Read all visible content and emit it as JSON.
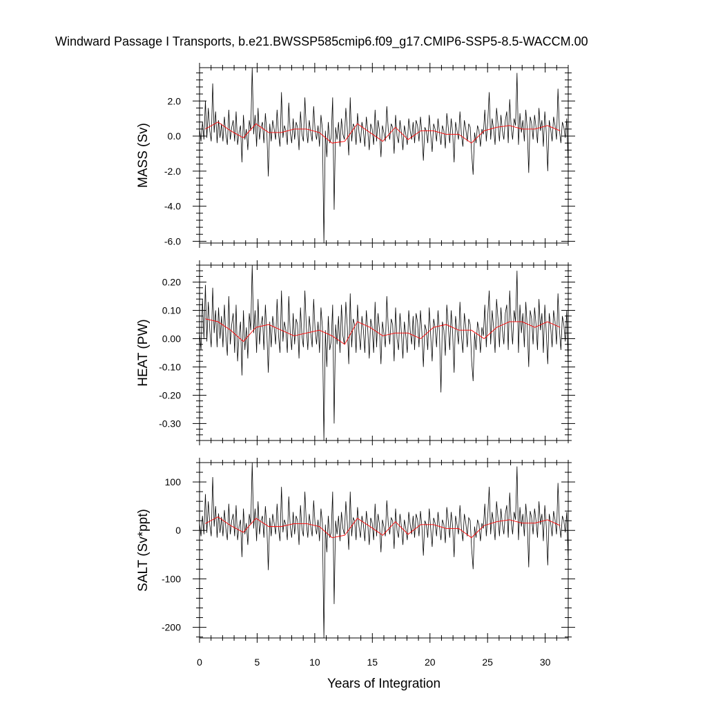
{
  "chart_data": {
    "type": "line",
    "title": "Windward Passage I Transports, b.e21.BWSSP585cmip6.f09_g17.CMIP6-SSP5-8.5-WACCM.00",
    "xlabel": "Years of Integration",
    "xlim": [
      0,
      32
    ],
    "x_ticks": [
      0,
      5,
      10,
      15,
      20,
      25,
      30
    ],
    "x_tick_labels": [
      "0",
      "5",
      "10",
      "15",
      "20",
      "25",
      "30"
    ],
    "series_colors": {
      "monthly": "#000000",
      "annual_mean": "#ff0000"
    },
    "panels": [
      {
        "ylabel": "MASS (Sv)",
        "ylim": [
          -6.1,
          3.9
        ],
        "y_ticks": [
          2.0,
          0.0,
          -2.0,
          -4.0,
          -6.0
        ],
        "y_tick_labels": [
          "2.0",
          "0.0",
          "-2.0",
          "-4.0",
          "-6.0"
        ],
        "series": [
          {
            "values": [
              0.4,
              -0.3,
              0.8,
              -0.2,
              2.0,
              -0.1,
              1.6,
              0.3,
              -0.3,
              3.0,
              0.2,
              1.4,
              -0.4,
              0.9,
              -0.1,
              0.7,
              -0.3,
              1.1,
              0.1,
              -0.5,
              1.5,
              -0.2,
              0.5,
              0.9,
              -0.3,
              1.4,
              -0.5,
              0.2,
              0.6,
              -1.5,
              1.2,
              -0.2,
              0.4,
              -0.8,
              0.9,
              0.3,
              3.9,
              0.1,
              1.2,
              -0.6,
              1.6,
              -0.2,
              0.5,
              0.8,
              -0.4,
              1.3,
              0.2,
              -2.3,
              0.7,
              -0.3,
              0.9,
              0.4,
              -0.2,
              1.5,
              0.1,
              -0.6,
              2.5,
              -0.1,
              0.6,
              0.3,
              -0.5,
              1.9,
              0.2,
              -0.4,
              1.0,
              -0.2,
              0.8,
              0.5,
              -0.8,
              1.4,
              0.1,
              -0.3,
              2.2,
              0.4,
              -0.4,
              0.9,
              0.2,
              -0.3,
              1.7,
              0.3,
              -0.2,
              0.6,
              -0.6,
              1.2,
              0.4,
              -6.1,
              0.3,
              -1.2,
              0.8,
              -0.4,
              -0.1,
              2.2,
              -4.2,
              0.5,
              -0.2,
              0.8,
              -0.6,
              1.0,
              0.1,
              -0.2,
              1.6,
              0.4,
              -1.1,
              2.2,
              -0.3,
              0.7,
              0.5,
              -0.5,
              1.3,
              0.2,
              -0.4,
              0.8,
              0.3,
              -0.6,
              1.1,
              0.3,
              -0.8,
              0.7,
              0.4,
              -0.5,
              1.5,
              -0.3,
              0.9,
              0.3,
              -1.2,
              0.6,
              0.2,
              -0.3,
              1.7,
              0.4,
              -0.2,
              0.7,
              0.5,
              -1.0,
              1.2,
              0.0,
              -0.4,
              0.9,
              0.2,
              -0.8,
              0.6,
              0.1,
              -0.5,
              1.0,
              0.3,
              -0.2,
              0.8,
              -0.4,
              0.9,
              0.6,
              -0.3,
              1.1,
              0.2,
              -1.4,
              0.5,
              0.3,
              -0.4,
              1.2,
              0.1,
              -0.9,
              0.7,
              0.4,
              -0.3,
              1.0,
              0.2,
              -0.5,
              0.6,
              0.3,
              -0.7,
              1.3,
              0.5,
              -0.4,
              1.0,
              0.2,
              -1.5,
              0.8,
              0.3,
              -0.2,
              1.4,
              0.1,
              -0.6,
              0.9,
              0.4,
              -0.3,
              0.7,
              0.5,
              -1.0,
              -2.2,
              0.2,
              -0.4,
              0.6,
              0.3,
              -0.6,
              0.4,
              0.1,
              1.5,
              -0.3,
              0.8,
              2.5,
              -0.2,
              1.0,
              0.4,
              -0.5,
              1.6,
              0.7,
              -0.3,
              1.2,
              0.3,
              -0.2,
              0.9,
              1.4,
              -0.4,
              2.1,
              0.5,
              -0.2,
              1.0,
              0.6,
              3.6,
              -0.5,
              1.3,
              0.2,
              0.9,
              -0.3,
              1.5,
              0.4,
              -2.1,
              1.1,
              0.7,
              -0.2,
              1.2,
              0.5,
              -0.4,
              1.6,
              0.3,
              0.9,
              -0.6,
              1.4,
              0.2,
              -2.0,
              0.9,
              0.4,
              -0.3,
              1.1,
              0.6,
              -0.2,
              2.7,
              0.3,
              -0.4,
              0.8,
              0.5,
              -0.1,
              1.0,
              -1.7
            ]
          },
          {
            "values": [
              0.4,
              0.8,
              0.3,
              -0.1,
              0.7,
              0.2,
              0.2,
              0.4,
              0.4,
              0.2,
              -0.4,
              -0.3,
              0.7,
              0.2,
              -0.3,
              0.5,
              -0.2,
              0.3,
              0.3,
              0.1,
              0.1,
              -0.4,
              0.3,
              0.5,
              0.6,
              0.4,
              0.4,
              0.6,
              0.3
            ]
          }
        ]
      },
      {
        "ylabel": "HEAT (PW)",
        "ylim": [
          -0.36,
          0.26
        ],
        "y_ticks": [
          0.2,
          0.1,
          0.0,
          -0.1,
          -0.2,
          -0.3
        ],
        "y_tick_labels": [
          "0.20",
          "0.10",
          "0.00",
          "-0.10",
          "-0.20",
          "-0.30"
        ],
        "series": [
          {
            "values": [
              0.02,
              -0.04,
              0.14,
              0.0,
              0.19,
              -0.01,
              0.13,
              0.03,
              -0.03,
              0.18,
              0.02,
              0.1,
              -0.03,
              0.11,
              0.0,
              0.08,
              -0.03,
              0.12,
              0.01,
              -0.06,
              0.15,
              -0.02,
              0.05,
              0.09,
              -0.05,
              0.12,
              -0.08,
              0.01,
              0.06,
              -0.13,
              0.1,
              -0.04,
              0.04,
              -0.07,
              0.09,
              0.03,
              0.26,
              0.02,
              0.1,
              -0.05,
              0.14,
              -0.02,
              0.05,
              0.08,
              -0.04,
              0.12,
              0.02,
              -0.12,
              0.06,
              -0.03,
              0.08,
              0.04,
              -0.02,
              0.14,
              0.01,
              -0.05,
              0.17,
              -0.01,
              0.06,
              0.03,
              -0.05,
              0.15,
              0.02,
              -0.04,
              0.09,
              -0.02,
              0.07,
              0.05,
              -0.07,
              0.11,
              0.01,
              -0.03,
              0.17,
              0.04,
              -0.04,
              0.08,
              0.02,
              -0.03,
              0.14,
              0.03,
              -0.02,
              0.06,
              -0.05,
              0.11,
              0.04,
              -0.36,
              0.03,
              -0.1,
              0.08,
              -0.04,
              -0.01,
              0.12,
              -0.3,
              0.05,
              -0.02,
              0.08,
              -0.05,
              0.12,
              0.01,
              -0.02,
              0.13,
              0.04,
              -0.09,
              0.16,
              -0.03,
              0.07,
              0.05,
              -0.05,
              0.12,
              0.02,
              -0.04,
              0.08,
              0.03,
              -0.05,
              0.1,
              0.03,
              -0.07,
              0.07,
              0.04,
              -0.05,
              0.13,
              -0.03,
              0.09,
              0.03,
              -0.09,
              0.06,
              0.02,
              -0.03,
              0.15,
              0.04,
              -0.02,
              0.07,
              0.05,
              -0.08,
              0.11,
              0.0,
              -0.04,
              0.09,
              0.02,
              -0.07,
              0.06,
              0.01,
              -0.05,
              0.1,
              0.03,
              -0.02,
              0.08,
              -0.04,
              0.09,
              0.06,
              -0.03,
              0.1,
              0.02,
              -0.1,
              0.05,
              0.03,
              -0.04,
              0.11,
              0.01,
              -0.08,
              0.07,
              0.04,
              -0.03,
              0.1,
              0.02,
              -0.19,
              0.06,
              0.03,
              -0.06,
              0.12,
              0.05,
              -0.04,
              0.1,
              0.02,
              -0.12,
              0.08,
              0.03,
              -0.02,
              0.13,
              0.01,
              -0.05,
              0.09,
              0.04,
              -0.03,
              0.07,
              0.05,
              -0.08,
              -0.15,
              0.02,
              -0.04,
              0.06,
              0.03,
              -0.05,
              0.04,
              0.01,
              0.12,
              -0.03,
              0.08,
              0.17,
              -0.02,
              0.1,
              0.04,
              -0.05,
              0.14,
              0.07,
              -0.03,
              0.11,
              0.03,
              -0.02,
              0.09,
              0.12,
              -0.04,
              0.17,
              0.05,
              -0.02,
              0.1,
              0.06,
              0.24,
              -0.05,
              0.12,
              0.02,
              0.09,
              -0.03,
              0.13,
              0.04,
              -0.1,
              0.1,
              0.07,
              -0.02,
              0.11,
              0.05,
              -0.04,
              0.14,
              0.03,
              0.09,
              -0.05,
              0.12,
              0.02,
              -0.09,
              0.09,
              0.04,
              -0.03,
              0.1,
              0.06,
              -0.02,
              0.16,
              0.03,
              -0.04,
              0.08,
              0.05,
              -0.01,
              0.1,
              -0.1
            ]
          },
          {
            "values": [
              0.07,
              0.06,
              0.03,
              -0.01,
              0.04,
              0.05,
              0.03,
              0.01,
              0.02,
              0.03,
              0.01,
              -0.02,
              0.06,
              0.04,
              0.01,
              0.02,
              0.02,
              0.0,
              0.04,
              0.05,
              0.03,
              0.03,
              0.0,
              0.04,
              0.06,
              0.06,
              0.04,
              0.06,
              0.04
            ]
          }
        ]
      },
      {
        "ylabel": "SALT (Sv*ppt)",
        "ylim": [
          -222,
          140
        ],
        "y_ticks": [
          100,
          0,
          -100,
          -200
        ],
        "y_tick_labels": [
          "100",
          "0",
          "-100",
          "-200"
        ],
        "series": [
          {
            "values": [
              15,
              -12,
              30,
              -8,
              75,
              -5,
              60,
              12,
              -12,
              110,
              8,
              50,
              -15,
              35,
              -5,
              28,
              -12,
              42,
              4,
              -20,
              55,
              -8,
              20,
              34,
              -12,
              52,
              -20,
              8,
              22,
              -55,
              45,
              -8,
              15,
              -30,
              34,
              12,
              140,
              4,
              45,
              -22,
              60,
              -8,
              20,
              30,
              -15,
              50,
              8,
              -82,
              26,
              -12,
              34,
              15,
              -8,
              55,
              4,
              -22,
              90,
              -4,
              22,
              12,
              -20,
              70,
              8,
              -15,
              38,
              -8,
              30,
              20,
              -30,
              52,
              4,
              -12,
              80,
              15,
              -15,
              34,
              8,
              -12,
              62,
              12,
              -8,
              22,
              -22,
              45,
              15,
              -222,
              12,
              -45,
              30,
              -15,
              -4,
              80,
              -152,
              20,
              -8,
              30,
              -22,
              38,
              4,
              -8,
              60,
              15,
              -40,
              80,
              -12,
              26,
              20,
              -20,
              48,
              8,
              -15,
              30,
              12,
              -22,
              40,
              12,
              -30,
              26,
              15,
              -20,
              55,
              -12,
              34,
              12,
              -45,
              22,
              8,
              -12,
              62,
              15,
              -8,
              26,
              20,
              -38,
              45,
              0,
              -15,
              34,
              8,
              -30,
              22,
              4,
              -20,
              38,
              12,
              -8,
              30,
              -15,
              34,
              22,
              -12,
              40,
              8,
              -52,
              20,
              12,
              -15,
              45,
              4,
              -34,
              26,
              15,
              -12,
              38,
              8,
              -20,
              22,
              12,
              -26,
              48,
              20,
              -15,
              38,
              8,
              -55,
              30,
              12,
              -8,
              52,
              4,
              -22,
              34,
              15,
              -12,
              26,
              20,
              -38,
              -80,
              8,
              -15,
              22,
              12,
              -22,
              15,
              4,
              55,
              -12,
              30,
              90,
              -8,
              38,
              15,
              -20,
              60,
              26,
              -12,
              45,
              12,
              -8,
              34,
              52,
              -15,
              78,
              20,
              -8,
              38,
              22,
              132,
              -20,
              48,
              8,
              34,
              -12,
              55,
              15,
              -76,
              40,
              26,
              -8,
              45,
              20,
              -15,
              60,
              12,
              34,
              -22,
              52,
              8,
              -72,
              34,
              15,
              -12,
              40,
              22,
              -8,
              98,
              12,
              -15,
              30,
              20,
              -4,
              38,
              -62
            ]
          },
          {
            "values": [
              14,
              28,
              10,
              -4,
              25,
              8,
              8,
              14,
              14,
              8,
              -15,
              -10,
              25,
              8,
              -10,
              18,
              -8,
              12,
              12,
              4,
              4,
              -15,
              10,
              18,
              22,
              15,
              15,
              22,
              10
            ]
          }
        ]
      }
    ]
  }
}
